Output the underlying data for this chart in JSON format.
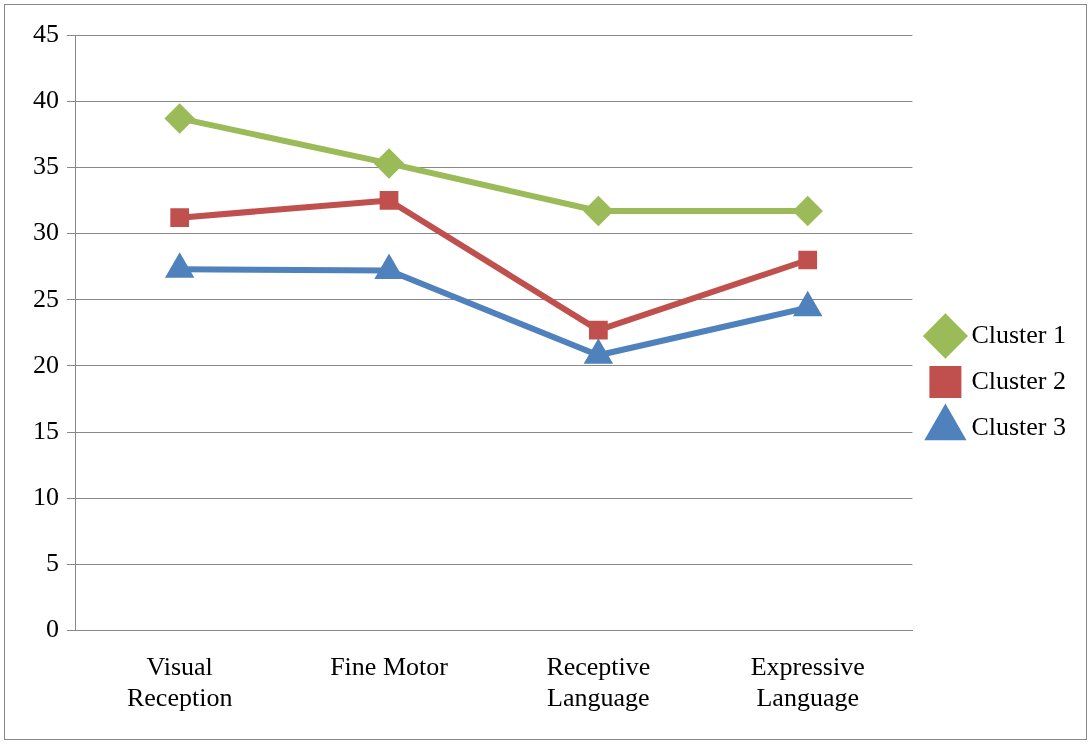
{
  "chart_data": {
    "type": "line",
    "categories": [
      "Visual Reception",
      "Fine Motor",
      "Receptive Language",
      "Expressive Language"
    ],
    "series": [
      {
        "name": "Cluster 1",
        "color": "#9bbb59",
        "marker": "diamond",
        "values": [
          38.7,
          35.3,
          31.7,
          31.7
        ]
      },
      {
        "name": "Cluster 2",
        "color": "#c0504d",
        "marker": "square",
        "values": [
          31.2,
          32.5,
          22.7,
          28.0
        ]
      },
      {
        "name": "Cluster 3",
        "color": "#4f81bd",
        "marker": "triangle",
        "values": [
          27.3,
          27.2,
          20.8,
          24.4
        ]
      }
    ],
    "ylim": [
      0,
      45
    ],
    "yticks": [
      0,
      5,
      10,
      15,
      20,
      25,
      30,
      35,
      40,
      45
    ],
    "grid": "y",
    "legend": "right",
    "line_style": "solid"
  }
}
